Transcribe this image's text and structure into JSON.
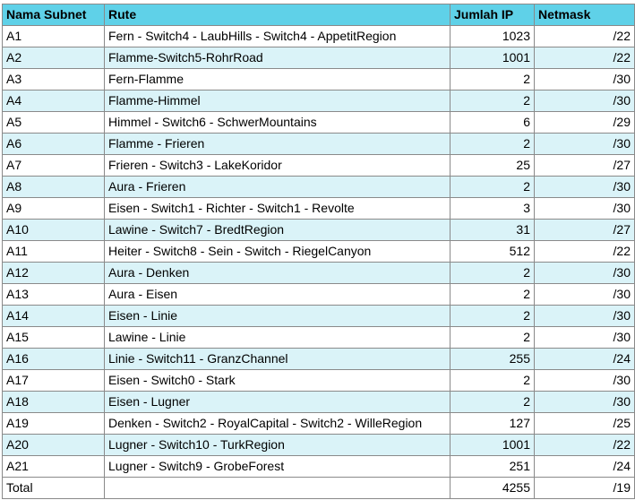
{
  "headers": [
    "Nama Subnet",
    "Rute",
    "Jumlah IP",
    "Netmask"
  ],
  "rows": [
    [
      "A1",
      "Fern - Switch4 - LaubHills - Switch4 - AppetitRegion",
      "1023",
      "/22"
    ],
    [
      "A2",
      "Flamme-Switch5-RohrRoad",
      "1001",
      "/22"
    ],
    [
      "A3",
      "Fern-Flamme",
      "2",
      "/30"
    ],
    [
      "A4",
      "Flamme-Himmel",
      "2",
      "/30"
    ],
    [
      "A5",
      "Himmel - Switch6 - SchwerMountains",
      "6",
      "/29"
    ],
    [
      "A6",
      "Flamme - Frieren",
      "2",
      "/30"
    ],
    [
      "A7",
      "Frieren - Switch3 - LakeKoridor",
      "25",
      "/27"
    ],
    [
      "A8",
      "Aura - Frieren",
      "2",
      "/30"
    ],
    [
      "A9",
      "Eisen - Switch1 - Richter - Switch1 - Revolte",
      "3",
      "/30"
    ],
    [
      "A10",
      "Lawine - Switch7 - BredtRegion",
      "31",
      "/27"
    ],
    [
      "A11",
      "Heiter - Switch8 - Sein - Switch - RiegelCanyon",
      "512",
      "/22"
    ],
    [
      "A12",
      "Aura - Denken",
      "2",
      "/30"
    ],
    [
      "A13",
      "Aura - Eisen",
      "2",
      "/30"
    ],
    [
      "A14",
      "Eisen - Linie",
      "2",
      "/30"
    ],
    [
      "A15",
      "Lawine - Linie",
      "2",
      "/30"
    ],
    [
      "A16",
      "Linie - Switch11 - GranzChannel",
      "255",
      "/24"
    ],
    [
      "A17",
      "Eisen - Switch0 - Stark",
      "2",
      "/30"
    ],
    [
      "A18",
      "Eisen - Lugner",
      "2",
      "/30"
    ],
    [
      "A19",
      "Denken - Switch2 - RoyalCapital - Switch2 - WilleRegion",
      "127",
      "/25"
    ],
    [
      "A20",
      "Lugner - Switch10 - TurkRegion",
      "1001",
      "/22"
    ],
    [
      "A21",
      "Lugner - Switch9 - GrobeForest",
      "251",
      "/24"
    ]
  ],
  "total": {
    "label": "Total",
    "rute": "",
    "jumlah_ip": "4255",
    "netmask": "/19"
  },
  "colors": {
    "header_bg": "#5fd1e8",
    "alt_row_bg": "#daf3f8",
    "row_bg": "#ffffff",
    "border": "#8a8a8a"
  }
}
